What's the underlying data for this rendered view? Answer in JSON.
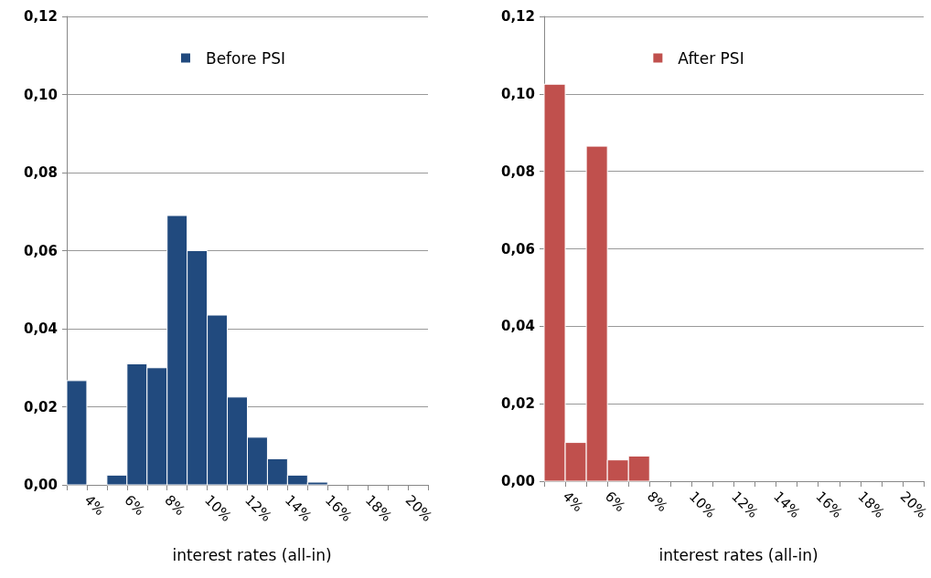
{
  "chart_data": [
    {
      "type": "histogram",
      "xlabel": "interest rates (all-in)",
      "bins": [
        3,
        4,
        5,
        6,
        7,
        8,
        9,
        10,
        11,
        12,
        13,
        14,
        15,
        16,
        17,
        18,
        19,
        20,
        21
      ],
      "series": [
        {
          "name": "Before PSI",
          "color": "#214a7e",
          "values": [
            0.0267,
            0,
            0.0025,
            0.031,
            0.03,
            0.069,
            0.06,
            0.0435,
            0.0225,
            0.0122,
            0.0067,
            0.0025,
            0.0007,
            0,
            0,
            0,
            0,
            0
          ]
        }
      ],
      "xlim": [
        3,
        21
      ],
      "xticks": [
        {
          "value": 3,
          "label": null
        },
        {
          "value": 4,
          "label": "4%"
        },
        {
          "value": 5,
          "label": null
        },
        {
          "value": 6,
          "label": "6%"
        },
        {
          "value": 7,
          "label": null
        },
        {
          "value": 8,
          "label": "8%"
        },
        {
          "value": 9,
          "label": null
        },
        {
          "value": 10,
          "label": "10%"
        },
        {
          "value": 11,
          "label": null
        },
        {
          "value": 12,
          "label": "12%"
        },
        {
          "value": 13,
          "label": null
        },
        {
          "value": 14,
          "label": "14%"
        },
        {
          "value": 15,
          "label": null
        },
        {
          "value": 16,
          "label": "16%"
        },
        {
          "value": 17,
          "label": null
        },
        {
          "value": 18,
          "label": "18%"
        },
        {
          "value": 19,
          "label": null
        },
        {
          "value": 20,
          "label": "20%"
        },
        {
          "value": 21,
          "label": null
        }
      ],
      "ylim": [
        0,
        0.12
      ],
      "yticks": [
        {
          "value": 0,
          "label": "0,00"
        },
        {
          "value": 0.02,
          "label": "0,02"
        },
        {
          "value": 0.04,
          "label": "0,04"
        },
        {
          "value": 0.06,
          "label": "0,06"
        },
        {
          "value": 0.08,
          "label": "0,08"
        },
        {
          "value": 0.1,
          "label": "0,10"
        },
        {
          "value": 0.12,
          "label": "0,12"
        }
      ],
      "grid": "y",
      "legend": "top"
    },
    {
      "type": "histogram",
      "xlabel": "interest rates (all-in)",
      "bins": [
        3,
        4,
        5,
        6,
        7,
        8,
        9,
        10,
        11,
        12,
        13,
        14,
        15,
        16,
        17,
        18,
        19,
        20,
        21
      ],
      "series": [
        {
          "name": "After PSI",
          "color": "#c0504d",
          "values": [
            0.1025,
            0.01,
            0.0865,
            0.0055,
            0.0065,
            0,
            0,
            0,
            0,
            0,
            0,
            0,
            0,
            0,
            0,
            0,
            0,
            0
          ]
        }
      ],
      "xlim": [
        3,
        21
      ],
      "xticks": [
        {
          "value": 3,
          "label": null
        },
        {
          "value": 4,
          "label": "4%"
        },
        {
          "value": 5,
          "label": null
        },
        {
          "value": 6,
          "label": "6%"
        },
        {
          "value": 7,
          "label": null
        },
        {
          "value": 8,
          "label": "8%"
        },
        {
          "value": 9,
          "label": null
        },
        {
          "value": 10,
          "label": "10%"
        },
        {
          "value": 11,
          "label": null
        },
        {
          "value": 12,
          "label": "12%"
        },
        {
          "value": 13,
          "label": null
        },
        {
          "value": 14,
          "label": "14%"
        },
        {
          "value": 15,
          "label": null
        },
        {
          "value": 16,
          "label": "16%"
        },
        {
          "value": 17,
          "label": null
        },
        {
          "value": 18,
          "label": "18%"
        },
        {
          "value": 19,
          "label": null
        },
        {
          "value": 20,
          "label": "20%"
        },
        {
          "value": 21,
          "label": null
        }
      ],
      "ylim": [
        0,
        0.12
      ],
      "yticks": [
        {
          "value": 0,
          "label": "0,00"
        },
        {
          "value": 0.02,
          "label": "0,02"
        },
        {
          "value": 0.04,
          "label": "0,04"
        },
        {
          "value": 0.06,
          "label": "0,06"
        },
        {
          "value": 0.08,
          "label": "0,08"
        },
        {
          "value": 0.1,
          "label": "0,10"
        },
        {
          "value": 0.12,
          "label": "0,12"
        }
      ],
      "grid": "y",
      "legend": "top"
    }
  ]
}
